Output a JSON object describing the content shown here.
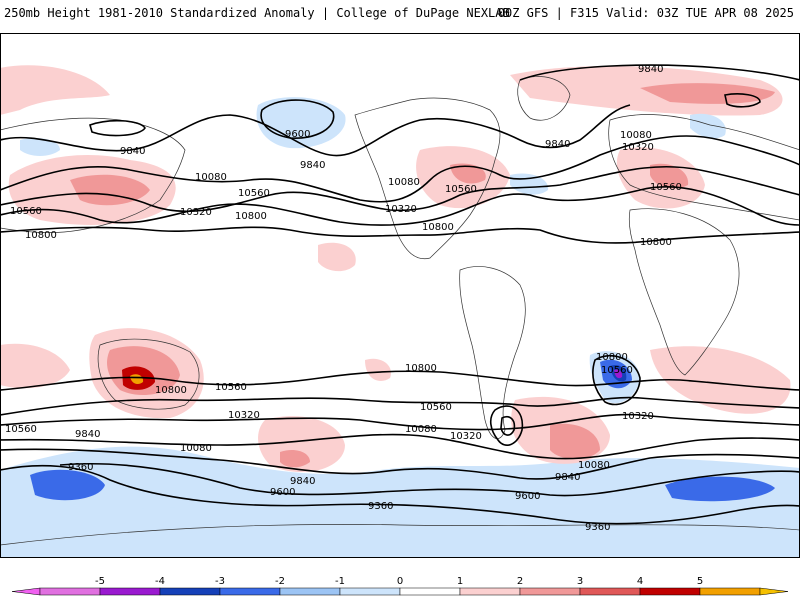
{
  "header": {
    "left": "250mb Height 1981-2010 Standardized Anomaly | College of DuPage NEXLAB",
    "right": "00Z GFS | F315 Valid: 03Z TUE APR 08 2025"
  },
  "colorbar": {
    "ticks": [
      "-5",
      "-4",
      "-3",
      "-2",
      "-1",
      "0",
      "1",
      "2",
      "3",
      "4",
      "5"
    ],
    "colors": [
      "#e070e0",
      "#9a1ad0",
      "#1540b8",
      "#3a6ae8",
      "#9cc4f4",
      "#cde4fb",
      "#ffffff",
      "#fbd0d0",
      "#f09898",
      "#e05858",
      "#c00000",
      "#f2a000"
    ],
    "end_low": "#f060f0",
    "end_high": "#f5c000"
  },
  "contours": {
    "labels": [
      {
        "text": "9840"
      },
      {
        "text": "9600"
      },
      {
        "text": "9840"
      },
      {
        "text": "10080"
      },
      {
        "text": "10560"
      },
      {
        "text": "10320"
      },
      {
        "text": "10800"
      },
      {
        "text": "10560"
      },
      {
        "text": "10800"
      },
      {
        "text": "10080"
      },
      {
        "text": "10320"
      },
      {
        "text": "10560"
      },
      {
        "text": "10800"
      },
      {
        "text": "9840"
      },
      {
        "text": "9840"
      },
      {
        "text": "10080"
      },
      {
        "text": "10320"
      },
      {
        "text": "10560"
      },
      {
        "text": "10800"
      },
      {
        "text": "10800"
      },
      {
        "text": "10560"
      },
      {
        "text": "10320"
      },
      {
        "text": "10800"
      },
      {
        "text": "10560"
      },
      {
        "text": "10800"
      },
      {
        "text": "10560"
      },
      {
        "text": "10320"
      },
      {
        "text": "10080"
      },
      {
        "text": "10320"
      },
      {
        "text": "10560"
      },
      {
        "text": "9840"
      },
      {
        "text": "9360"
      },
      {
        "text": "10080"
      },
      {
        "text": "9840"
      },
      {
        "text": "9600"
      },
      {
        "text": "9360"
      },
      {
        "text": "9600"
      },
      {
        "text": "10080"
      },
      {
        "text": "9840"
      },
      {
        "text": "9360"
      }
    ]
  }
}
